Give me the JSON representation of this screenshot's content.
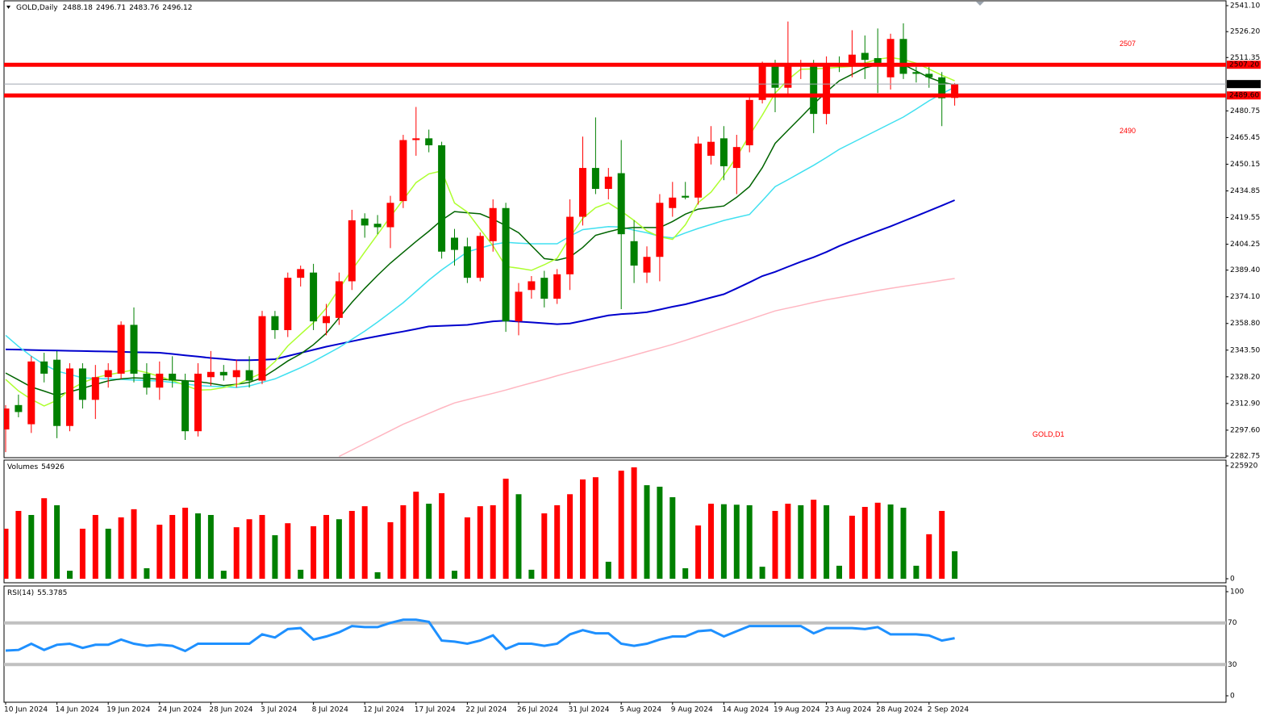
{
  "chart_data": [
    {
      "type": "candlestick",
      "title": "GOLD,Daily",
      "categories": [
        "10 Jun 2024",
        null,
        null,
        null,
        "14 Jun 2024",
        null,
        null,
        null,
        "19 Jun 2024",
        null,
        null,
        null,
        "24 Jun 2024",
        null,
        null,
        null,
        "28 Jun 2024",
        null,
        null,
        null,
        "3 Jul 2024",
        null,
        null,
        null,
        "8 Jul 2024",
        null,
        null,
        null,
        "12 Jul 2024",
        null,
        null,
        null,
        "17 Jul 2024",
        null,
        null,
        null,
        "22 Jul 2024",
        null,
        null,
        null,
        "26 Jul 2024",
        null,
        null,
        null,
        "31 Jul 2024",
        null,
        null,
        null,
        "5 Aug 2024",
        null,
        null,
        null,
        "9 Aug 2024",
        null,
        null,
        null,
        "14 Aug 2024",
        null,
        null,
        null,
        "19 Aug 2024",
        null,
        null,
        null,
        "23 Aug 2024",
        null,
        null,
        null,
        "28 Aug 2024",
        null,
        null,
        null,
        "2 Sep 2024",
        null,
        null
      ],
      "open": [
        2298,
        2312,
        2301,
        2337,
        2338,
        2300,
        2333,
        2315,
        2328,
        2330,
        2358,
        2330,
        2322,
        2330,
        2326,
        2297,
        2328,
        2331,
        2328,
        2332,
        2326,
        2363,
        2355,
        2385,
        2388,
        2359,
        2362,
        2383,
        2419,
        2416,
        2414,
        2429,
        2464,
        2465,
        2461,
        2408,
        2403,
        2385,
        2406,
        2425,
        2360,
        2378,
        2385,
        2373,
        2387,
        2420,
        2448,
        2436,
        2445,
        2406,
        2388,
        2397,
        2425,
        2432,
        2431,
        2455,
        2465,
        2448,
        2461,
        2487,
        2507,
        2494,
        2507,
        2508,
        2479,
        2508,
        2508,
        2514,
        2511,
        2500,
        2522,
        2503,
        2502,
        2500,
        2488.18
      ],
      "high": [
        2312,
        2318,
        2340,
        2342,
        2343,
        2336,
        2336,
        2335,
        2336,
        2360,
        2368,
        2336,
        2337,
        2340,
        2330,
        2336,
        2343,
        2335,
        2338,
        2340,
        2366,
        2366,
        2388,
        2392,
        2393,
        2370,
        2388,
        2424,
        2422,
        2421,
        2432,
        2467,
        2483,
        2470,
        2463,
        2413,
        2408,
        2411,
        2430,
        2428,
        2382,
        2386,
        2389,
        2390,
        2430,
        2466,
        2477,
        2448,
        2464,
        2418,
        2403,
        2433,
        2440,
        2440,
        2466,
        2472,
        2472,
        2467,
        2490,
        2509,
        2510,
        2532,
        2510,
        2510,
        2512,
        2512,
        2527,
        2524,
        2528,
        2525,
        2531,
        2506,
        2506,
        2503,
        2496.71
      ],
      "low": [
        2285,
        2305,
        2296,
        2325,
        2293,
        2297,
        2310,
        2304,
        2322,
        2327,
        2325,
        2318,
        2315,
        2322,
        2292,
        2294,
        2323,
        2326,
        2322,
        2322,
        2324,
        2350,
        2351,
        2380,
        2355,
        2352,
        2358,
        2378,
        2408,
        2410,
        2402,
        2425,
        2455,
        2457,
        2396,
        2392,
        2382,
        2383,
        2400,
        2354,
        2352,
        2373,
        2368,
        2370,
        2378,
        2415,
        2433,
        2430,
        2367,
        2382,
        2382,
        2383,
        2420,
        2430,
        2427,
        2450,
        2441,
        2433,
        2457,
        2485,
        2480,
        2490,
        2499,
        2468,
        2473,
        2503,
        2500,
        2499,
        2491,
        2493,
        2499,
        2497,
        2494,
        2472,
        2483.76
      ],
      "close": [
        2310,
        2308,
        2337,
        2330,
        2300,
        2333,
        2315,
        2328,
        2332,
        2358,
        2330,
        2322,
        2330,
        2326,
        2297,
        2330,
        2331,
        2329,
        2332,
        2326,
        2363,
        2355,
        2385,
        2390,
        2360,
        2363,
        2383,
        2418,
        2415,
        2414,
        2428,
        2464,
        2465,
        2461,
        2400,
        2401,
        2385,
        2409,
        2425,
        2360,
        2377,
        2383,
        2373,
        2387,
        2420,
        2448,
        2436,
        2443,
        2410,
        2392,
        2397,
        2428,
        2431,
        2431,
        2462,
        2463,
        2449,
        2460,
        2487,
        2507,
        2494,
        2507,
        2508,
        2479,
        2507,
        2507,
        2513,
        2510,
        2507,
        2522,
        2502,
        2502,
        2500,
        2488,
        2496.12
      ],
      "up_color": "#ff0000",
      "down_color": "#008000",
      "series": [
        {
          "color": "#ffb6c1",
          "values": [
            null,
            null,
            null,
            null,
            null,
            null,
            null,
            null,
            null,
            null,
            null,
            null,
            null,
            null,
            null,
            null,
            null,
            null,
            null,
            null,
            null,
            null,
            null,
            null,
            null,
            null,
            2282.5,
            2286.2,
            2289.9,
            2293.6,
            2297.3,
            2301,
            2304.1,
            2307.2,
            2310.3,
            2313.2,
            2315.1,
            2316.9,
            2318.7,
            2320.6,
            2322.7,
            2324.7,
            2326.7,
            2328.8,
            2330.8,
            2332.7,
            2334.7,
            2336.6,
            2338.6,
            2340.6,
            2342.7,
            2344.7,
            2346.8,
            2349.1,
            2351.5,
            2353.9,
            2356.3,
            2358.7,
            2361.1,
            2363.6,
            2366,
            2367.6,
            2369.2,
            2370.9,
            2372.4,
            2373.7,
            2375,
            2376.3,
            2377.7,
            2378.9,
            2380.1,
            2381.2,
            2382.3,
            2383.5,
            2384.6
          ]
        },
        {
          "color": "#0000cd",
          "values": [
            2343.9,
            2343.8,
            2343.6,
            2343.4,
            2343.3,
            2343.1,
            2343,
            2342.8,
            2342.7,
            2342.5,
            2342.3,
            2342.2,
            2342,
            2341.3,
            2340.5,
            2339.8,
            2339,
            2338.4,
            2337.7,
            2337.7,
            2338,
            2338.3,
            2340.1,
            2341.9,
            2343.7,
            2345.5,
            2347,
            2348.6,
            2350.1,
            2351.5,
            2352.9,
            2354.2,
            2355.6,
            2357.1,
            2357.4,
            2357.7,
            2358,
            2359,
            2360,
            2360.4,
            2359.9,
            2359.4,
            2358.9,
            2358.4,
            2358.8,
            2360.3,
            2361.9,
            2363.4,
            2364.2,
            2364.6,
            2365.3,
            2366.8,
            2368.4,
            2369.8,
            2371.7,
            2373.7,
            2375.6,
            2378.9,
            2382.4,
            2386,
            2388.4,
            2391.3,
            2394.2,
            2396.8,
            2399.8,
            2403.2,
            2406.2,
            2409,
            2411.8,
            2414.5,
            2417.5,
            2420.4,
            2423.4,
            2426.4,
            2429.5
          ]
        },
        {
          "color": "#40e0f0",
          "values": [
            2352,
            2345.6,
            2340,
            2335.2,
            2331.5,
            2329.6,
            2327.6,
            2327.3,
            2327,
            2326.7,
            2326.4,
            2326.1,
            2325.8,
            2325,
            2324.1,
            2323.2,
            2322.8,
            2322.5,
            2322.1,
            2323,
            2325,
            2327,
            2330.2,
            2333.4,
            2337,
            2341,
            2345,
            2349.7,
            2354.4,
            2359.6,
            2365.1,
            2370.7,
            2377.2,
            2383.7,
            2389.5,
            2394.7,
            2399.9,
            2402,
            2404.1,
            2405.3,
            2404.9,
            2404.5,
            2404.5,
            2404.5,
            2408.9,
            2412.6,
            2413.5,
            2414.4,
            2414.1,
            2412.3,
            2410.8,
            2408.8,
            2407.9,
            2410.7,
            2413.3,
            2415.6,
            2417.9,
            2419.6,
            2421.3,
            2429.2,
            2437.3,
            2441.3,
            2445.4,
            2449.5,
            2454,
            2458.7,
            2462.4,
            2466.1,
            2469.8,
            2473.5,
            2477.2,
            2481.8,
            2486.5,
            2490.6,
            2494.3
          ]
        },
        {
          "color": "#006400",
          "values": [
            2330.4,
            2326.4,
            2322.4,
            2320,
            2317.5,
            2319.6,
            2321.6,
            2323.8,
            2325.9,
            2327,
            2327.6,
            2327.3,
            2326.8,
            2326.4,
            2326,
            2325.5,
            2324.4,
            2323.2,
            2323.9,
            2325,
            2327.6,
            2332.3,
            2337.3,
            2341.3,
            2346.6,
            2353.2,
            2362,
            2370.9,
            2378.9,
            2386.4,
            2393.4,
            2399.6,
            2405.8,
            2411.7,
            2418.1,
            2423,
            2422.3,
            2421.7,
            2418.6,
            2415,
            2410.8,
            2403.4,
            2396,
            2395.1,
            2396.9,
            2402.4,
            2409.4,
            2411.4,
            2413.2,
            2413.8,
            2413.8,
            2413.8,
            2417.3,
            2421.5,
            2424.4,
            2425.3,
            2426.2,
            2431.2,
            2437.3,
            2448.2,
            2462.1,
            2469.6,
            2477,
            2484.6,
            2491.7,
            2498,
            2501.7,
            2505.4,
            2507.3,
            2507.3,
            2507.3,
            2503.6,
            2499.9,
            2497.2,
            2495.7
          ]
        },
        {
          "color": "#adff2f",
          "values": [
            2326.7,
            2320.1,
            2315.3,
            2311.5,
            2314.7,
            2320.8,
            2324.8,
            2327.7,
            2329.4,
            2330.7,
            2332.2,
            2330.6,
            2328.4,
            2326.1,
            2323.3,
            2320.6,
            2320.8,
            2322,
            2323.7,
            2327.1,
            2330.4,
            2336.9,
            2345.9,
            2352.6,
            2359.3,
            2367.6,
            2378.7,
            2389.4,
            2399.8,
            2409.9,
            2420,
            2429.8,
            2439.6,
            2444.6,
            2446.3,
            2427.9,
            2422.7,
            2412.9,
            2403.3,
            2391.5,
            2390.5,
            2389.3,
            2392.5,
            2396.2,
            2408.2,
            2419.1,
            2425.2,
            2428,
            2423.2,
            2417.9,
            2411.9,
            2408.5,
            2407,
            2415.4,
            2428.1,
            2434.1,
            2443.6,
            2454.4,
            2466.7,
            2478.3,
            2490.9,
            2498.6,
            2504.6,
            2504.8,
            2505.2,
            2505.8,
            2506.3,
            2508.2,
            2510.4,
            2511.4,
            2510.2,
            2508.1,
            2504.7,
            2501.2,
            2498
          ]
        }
      ],
      "ylim": [
        2281.82,
        2543.88
      ],
      "yticks": [
        {
          "value": 2541.1,
          "label": "2541.10"
        },
        {
          "value": 2526.2,
          "label": "2526.20"
        },
        {
          "value": 2511.35,
          "label": "2511.35"
        },
        {
          "value": 2480.75,
          "label": "2480.75"
        },
        {
          "value": 2465.45,
          "label": "2465.45"
        },
        {
          "value": 2450.15,
          "label": "2450.15"
        },
        {
          "value": 2434.85,
          "label": "2434.85"
        },
        {
          "value": 2419.55,
          "label": "2419.55"
        },
        {
          "value": 2404.25,
          "label": "2404.25"
        },
        {
          "value": 2389.4,
          "label": "2389.40"
        },
        {
          "value": 2374.1,
          "label": "2374.10"
        },
        {
          "value": 2358.8,
          "label": "2358.80"
        },
        {
          "value": 2343.5,
          "label": "2343.50"
        },
        {
          "value": 2328.2,
          "label": "2328.20"
        },
        {
          "value": 2312.9,
          "label": "2312.90"
        },
        {
          "value": 2297.6,
          "label": "2297.60"
        },
        {
          "value": 2282.75,
          "label": "2282.75"
        }
      ],
      "hlines": [
        {
          "value": 2507.2,
          "label": "2507.20"
        },
        {
          "value": 2489.6,
          "label": "2489.60"
        }
      ],
      "hline_color": "#ff0000",
      "annotations": [
        "2507",
        "2490",
        "GOLD,D1"
      ]
    },
    {
      "type": "bar",
      "title": "Volumes",
      "values": [
        100000,
        135600,
        127500,
        161000,
        147000,
        16000,
        100000,
        127500,
        100000,
        122700,
        139000,
        21000,
        108000,
        127500,
        142000,
        130700,
        127500,
        16000,
        103000,
        119000,
        127500,
        87000,
        111000,
        18000,
        105000,
        127500,
        119000,
        135600,
        145000,
        13000,
        113000,
        147000,
        174000,
        150000,
        171000,
        16000,
        122700,
        145000,
        147000,
        200000,
        169000,
        18000,
        130700,
        147000,
        169000,
        198500,
        203000,
        34000,
        216000,
        222700,
        187000,
        184000,
        163000,
        21000,
        106500,
        150000,
        149000,
        148000,
        147000,
        24000,
        135600,
        150000,
        147000,
        158000,
        147000,
        26000,
        126000,
        143600,
        152000,
        148500,
        142000,
        26000,
        89000,
        135600,
        54926
      ],
      "up_color": "#ff0000",
      "down_color": "#008000",
      "ylim": [
        0,
        225920
      ],
      "yticks": [
        0,
        225920
      ]
    },
    {
      "type": "line",
      "title": "RSI(14)",
      "values": [
        43.4,
        44,
        50,
        44,
        49,
        50,
        46,
        49,
        49,
        54,
        50,
        48,
        49,
        48,
        43,
        50,
        50,
        50,
        50,
        50,
        59,
        56,
        64,
        65,
        54,
        57,
        61,
        67,
        66,
        66,
        70,
        73,
        73,
        71,
        53,
        52,
        50,
        53,
        58,
        45,
        50,
        50,
        48,
        50,
        59,
        63,
        60,
        60,
        50,
        48,
        50,
        54,
        57,
        57,
        62,
        63,
        57,
        62,
        67,
        67,
        67,
        67,
        67,
        60,
        65,
        65,
        65,
        64,
        66,
        59,
        59,
        59,
        58,
        53,
        55.3785
      ],
      "color": "#1e90ff",
      "ylim": [
        0,
        100
      ],
      "yticks": [
        0,
        100
      ],
      "levels": [
        70,
        30
      ],
      "level_color": "#c0c0c0"
    }
  ]
}
